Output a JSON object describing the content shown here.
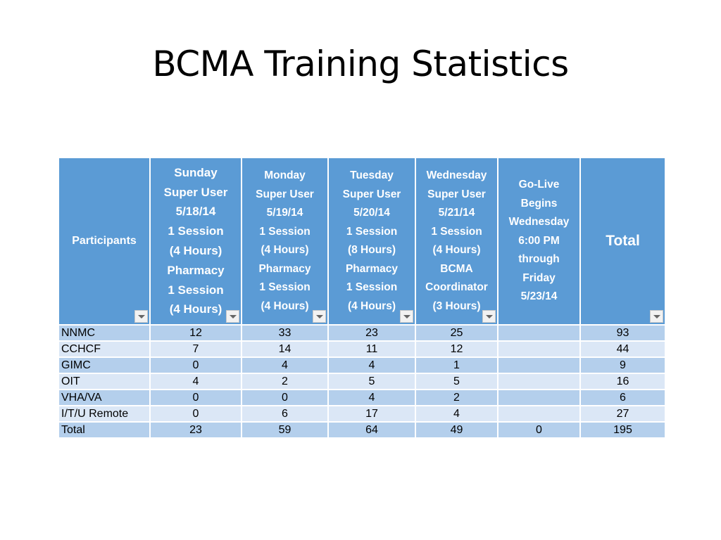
{
  "title": "BCMA Training Statistics",
  "table": {
    "headers": [
      {
        "lines": [
          "Participants"
        ]
      },
      {
        "lines": [
          "Sunday",
          "Super User",
          "5/18/14",
          "1 Session",
          "(4 Hours)",
          "Pharmacy",
          "1 Session",
          "(4 Hours)"
        ]
      },
      {
        "lines": [
          "Monday",
          "Super User",
          "5/19/14",
          "1 Session",
          "(4 Hours)",
          "Pharmacy",
          "1 Session",
          "(4 Hours)"
        ]
      },
      {
        "lines": [
          "Tuesday",
          "Super User",
          "5/20/14",
          "1 Session",
          "(8 Hours)",
          "Pharmacy",
          "1 Session",
          "(4 Hours)"
        ]
      },
      {
        "lines": [
          "Wednesday",
          "Super User",
          "5/21/14",
          "1 Session",
          "(4 Hours)",
          "BCMA",
          "Coordinator",
          "(3 Hours)"
        ]
      },
      {
        "lines": [
          "Go-Live",
          "Begins",
          "Wednesday",
          "6:00 PM",
          "through",
          "Friday",
          "5/23/14"
        ]
      },
      {
        "lines": [
          "Total"
        ]
      }
    ],
    "rows": [
      [
        "NNMC",
        "12",
        "33",
        "23",
        "25",
        "",
        "93"
      ],
      [
        "CCHCF",
        "7",
        "14",
        "11",
        "12",
        "",
        "44"
      ],
      [
        "GIMC",
        "0",
        "4",
        "4",
        "1",
        "",
        "9"
      ],
      [
        "OIT",
        "4",
        "2",
        "5",
        "5",
        "",
        "16"
      ],
      [
        "VHA/VA",
        "0",
        "0",
        "4",
        "2",
        "",
        "6"
      ],
      [
        "I/T/U Remote",
        "0",
        "6",
        "17",
        "4",
        "",
        "27"
      ],
      [
        "Total",
        "23",
        "59",
        "64",
        "49",
        "0",
        "195"
      ]
    ]
  }
}
